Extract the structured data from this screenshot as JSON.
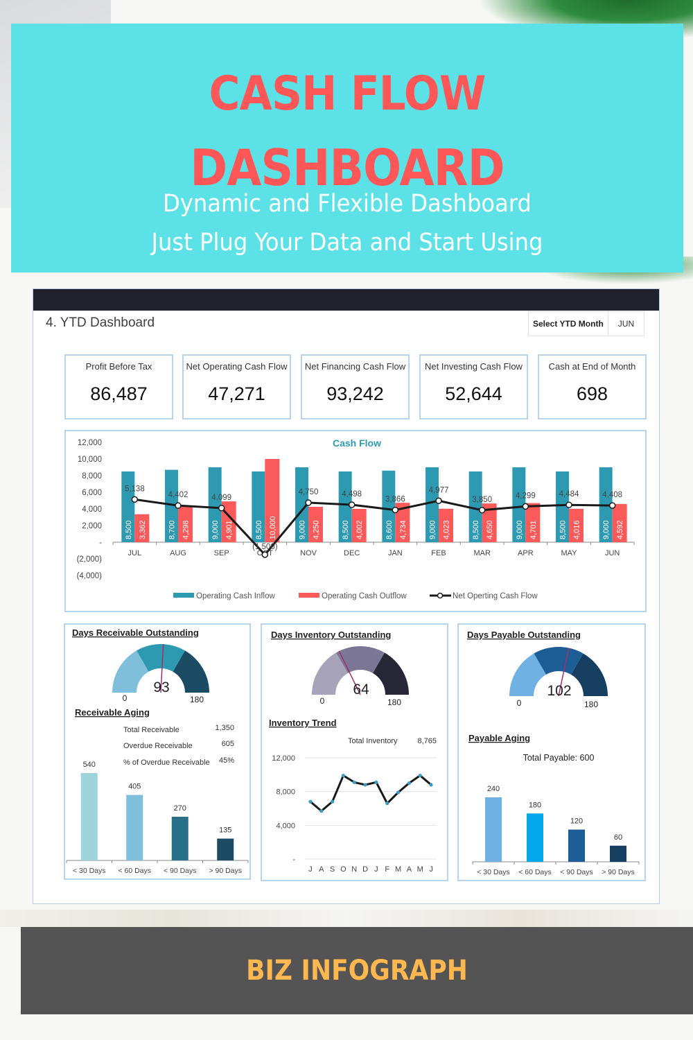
{
  "banner": {
    "title_line1": "CASH FLOW",
    "title_line2": "DASHBOARD",
    "subtitle_line1": "Dynamic and Flexible Dashboard",
    "subtitle_line2": "Just Plug Your Data and Start Using"
  },
  "dashboard": {
    "title": "4. YTD Dashboard",
    "select_label": "Select YTD Month",
    "select_value": "JUN",
    "kpis": [
      {
        "label": "Profit Before Tax",
        "value": "86,487"
      },
      {
        "label": "Net Operating Cash Flow",
        "value": "47,271"
      },
      {
        "label": "Net Financing Cash Flow",
        "value": "93,242"
      },
      {
        "label": "Net Investing Cash Flow",
        "value": "52,644"
      },
      {
        "label": "Cash at End of Month",
        "value": "698"
      }
    ],
    "dro": {
      "title": "Days Receivable Outstanding",
      "value": 93,
      "min": "0",
      "max": "180",
      "aging_title": "Receivable Aging",
      "stats": [
        {
          "label": "Total Receivable",
          "value": "1,350"
        },
        {
          "label": "Overdue Receivable",
          "value": "605"
        },
        {
          "label": "% of Overdue Receivable",
          "value": "45%"
        }
      ]
    },
    "dio": {
      "title": "Days Inventory Outstanding",
      "value": 64,
      "min": "0",
      "max": "180",
      "trend_title": "Inventory Trend",
      "total_label": "Total Inventory",
      "total_value": "8,765"
    },
    "dpo": {
      "title": "Days Payable Outstanding",
      "value": 102,
      "min": "0",
      "max": "180",
      "aging_title": "Payable Aging",
      "total_text": "Total Payable: 600"
    }
  },
  "footer": {
    "brand": "BIZ INFOGRAPH"
  },
  "colors": {
    "banner_bg": "#5ce1e6",
    "title_red": "#ff5757",
    "inflow": "#2e9ab2",
    "outflow": "#fb5a5a",
    "footer_bg": "#545454",
    "brand": "#ffb750"
  },
  "chart_data": [
    {
      "type": "bar",
      "title": "Cash Flow",
      "categories": [
        "JUL",
        "AUG",
        "SEP",
        "OCT",
        "NOV",
        "DEC",
        "JAN",
        "FEB",
        "MAR",
        "APR",
        "MAY",
        "JUN"
      ],
      "series": [
        {
          "name": "Operating Cash Inflow",
          "type": "bar",
          "values": [
            8500,
            8700,
            9000,
            8500,
            9000,
            8500,
            8600,
            9000,
            8500,
            9000,
            8500,
            9000
          ],
          "labels": [
            "8,500",
            "8,700",
            "9,000",
            "8,500",
            "9,000",
            "8,500",
            "8,600",
            "9,000",
            "8,500",
            "9,000",
            "8,500",
            "9,000"
          ]
        },
        {
          "name": "Operating Cash Outflow",
          "type": "bar",
          "values": [
            3362,
            4298,
            4901,
            10000,
            4250,
            4002,
            4734,
            4023,
            4650,
            4701,
            4016,
            4592
          ],
          "labels": [
            "3,362",
            "4,298",
            "4,901",
            "10,000",
            "4,250",
            "4,002",
            "4,734",
            "4,023",
            "4,650",
            "4,701",
            "4,016",
            "4,592"
          ]
        },
        {
          "name": "Net Operting Cash Flow",
          "type": "line",
          "values": [
            5138,
            4402,
            4099,
            -1500,
            4750,
            4498,
            3866,
            4977,
            3850,
            4299,
            4484,
            4408
          ],
          "labels": [
            "5,138",
            "4,402",
            "4,099",
            "(1,500)",
            "4,750",
            "4,498",
            "3,866",
            "4,977",
            "3,850",
            "4,299",
            "4,484",
            "4,408"
          ]
        }
      ],
      "ylim": [
        -4000,
        12000
      ],
      "yticks": [
        12000,
        10000,
        8000,
        6000,
        4000,
        2000,
        0,
        -2000,
        -4000
      ],
      "ytick_labels": [
        "12,000",
        "10,000",
        "8,000",
        "6,000",
        "4,000",
        "2,000",
        "-",
        "(2,000)",
        "(4,000)"
      ],
      "legend": "bottom"
    },
    {
      "type": "bar",
      "title": "Receivable Aging",
      "categories": [
        "< 30 Days",
        "< 60 Days",
        "< 90 Days",
        "> 90 Days"
      ],
      "values": [
        540,
        405,
        270,
        135
      ],
      "colors": [
        "#9fd3dc",
        "#7fbfdb",
        "#2a6f8a",
        "#1b4c63"
      ]
    },
    {
      "type": "line",
      "title": "Inventory Trend",
      "categories": [
        "J",
        "A",
        "S",
        "O",
        "N",
        "D",
        "J",
        "F",
        "M",
        "A",
        "M",
        "J"
      ],
      "values": [
        6800,
        5700,
        6800,
        9900,
        9100,
        8800,
        9100,
        6600,
        7900,
        9000,
        9900,
        8800
      ],
      "ylim": [
        0,
        12000
      ],
      "yticks": [
        12000,
        8000,
        4000,
        0
      ],
      "ytick_labels": [
        "12,000",
        "8,000",
        "4,000",
        "-"
      ],
      "grid": true
    },
    {
      "type": "bar",
      "title": "Payable Aging",
      "categories": [
        "< 30 Days",
        "< 60 Days",
        "< 90 Days",
        "> 90 Days"
      ],
      "values": [
        240,
        180,
        120,
        60
      ],
      "colors": [
        "#6fb1e3",
        "#04a9eb",
        "#1c5d96",
        "#163e61"
      ]
    }
  ]
}
